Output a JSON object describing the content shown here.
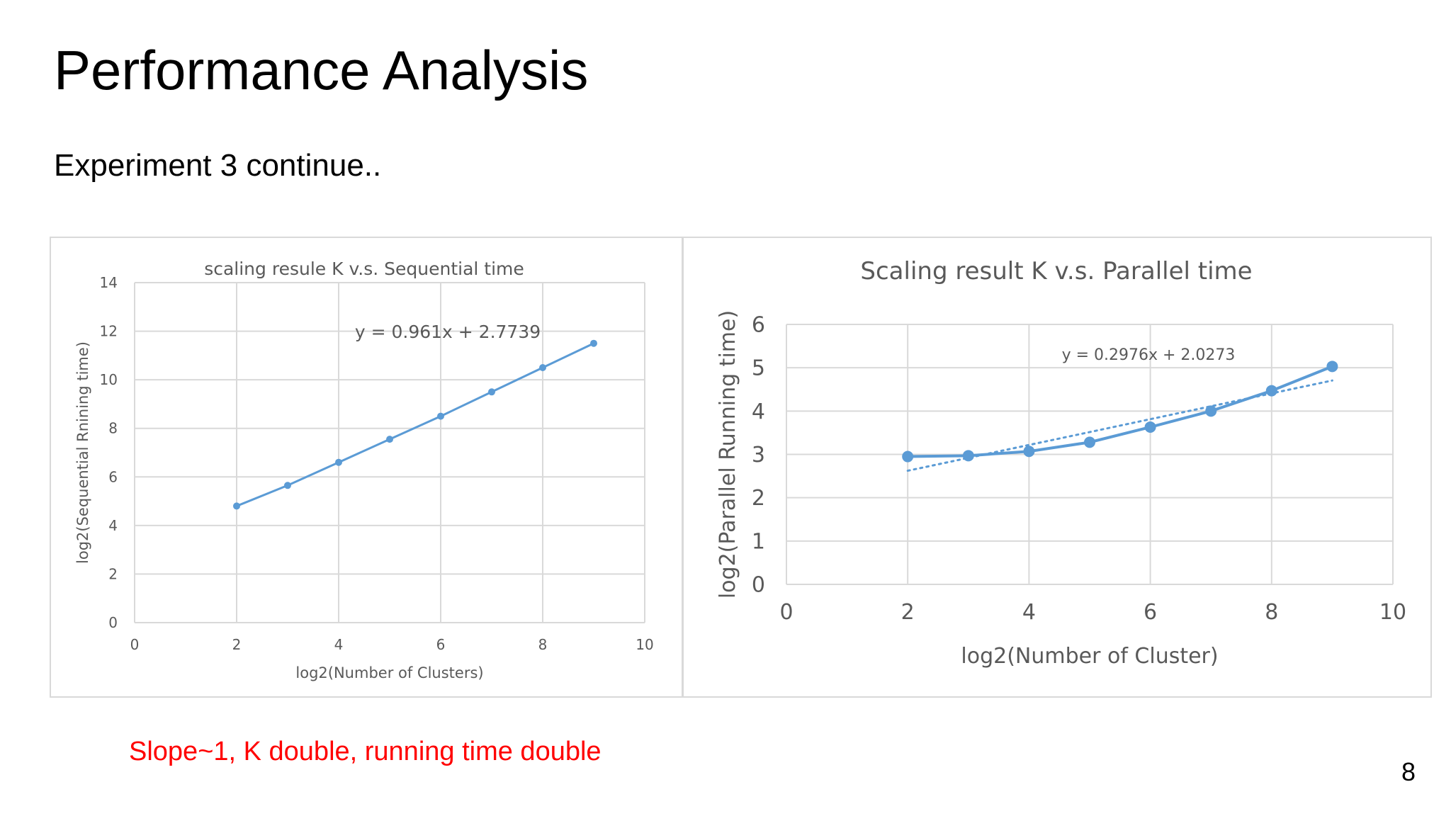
{
  "slide": {
    "title": "Performance Analysis",
    "subtitle": "Experiment 3 continue..",
    "note": "Slope~1, K double, running time double",
    "page_number": "8",
    "note_color": "#ff0000"
  },
  "colors": {
    "series": "#5b9bd5",
    "grid": "#d9d9d9",
    "axis_text": "#595959",
    "title_text": "#595959"
  },
  "chart_data": [
    {
      "type": "line",
      "title": "scaling resule K v.s. Sequential time",
      "xlabel": "log2(Number of Clusters)",
      "ylabel": "log2(Sequential Rnining time)",
      "xlim": [
        0,
        10
      ],
      "ylim": [
        0,
        14
      ],
      "xticks": [
        0,
        2,
        4,
        6,
        8,
        10
      ],
      "yticks": [
        0,
        2,
        4,
        6,
        8,
        10,
        12,
        14
      ],
      "grid": true,
      "series": [
        {
          "x": [
            2,
            3,
            4,
            5,
            6,
            7,
            8,
            9
          ],
          "y": [
            4.8,
            5.65,
            6.6,
            7.55,
            8.5,
            9.5,
            10.5,
            11.5
          ]
        }
      ],
      "trendline": {
        "equation": "y = 0.961x + 2.7739",
        "slope": 0.961,
        "intercept": 2.7739,
        "shown": false
      }
    },
    {
      "type": "line",
      "title": "Scaling result K v.s. Parallel time",
      "xlabel": "log2(Number of Cluster)",
      "ylabel": "log2(Parallel Running time)",
      "xlim": [
        0,
        10
      ],
      "ylim": [
        0,
        6
      ],
      "xticks": [
        0,
        2,
        4,
        6,
        8,
        10
      ],
      "yticks": [
        0,
        1,
        2,
        3,
        4,
        5,
        6
      ],
      "grid": true,
      "series": [
        {
          "x": [
            2,
            3,
            4,
            5,
            6,
            7,
            8,
            9
          ],
          "y": [
            2.95,
            2.97,
            3.07,
            3.28,
            3.63,
            4.0,
            4.47,
            5.03
          ]
        }
      ],
      "trendline": {
        "equation": "y = 0.2976x + 2.0273",
        "slope": 0.2976,
        "intercept": 2.0273,
        "shown": true,
        "style": "dotted"
      }
    }
  ]
}
